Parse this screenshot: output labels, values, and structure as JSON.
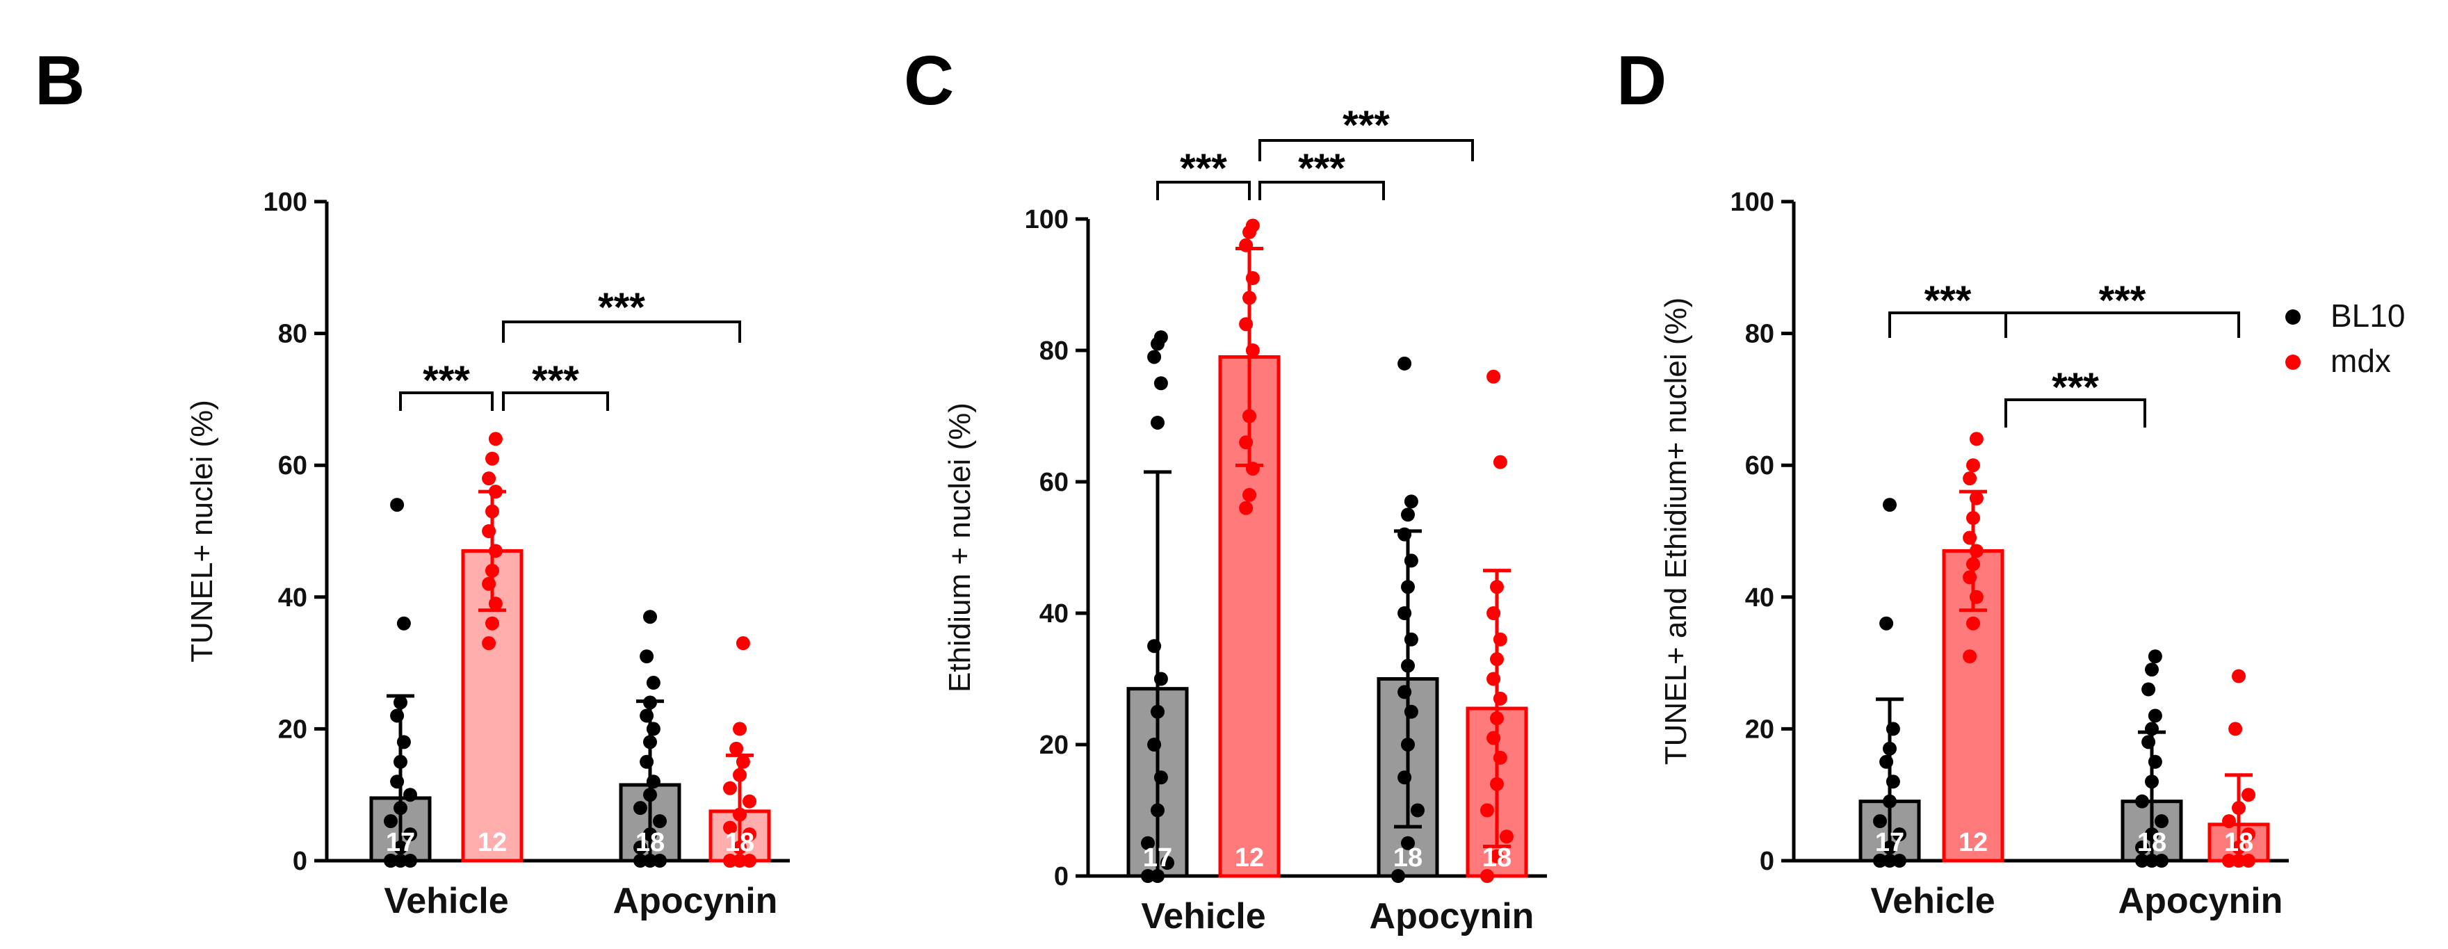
{
  "colors": {
    "bl10_bar": "#9a9a9a",
    "bl10_edge": "#000000",
    "bl10_dot": "#000000",
    "mdx_bar_light": "#ffadad",
    "mdx_bar": "#ff7b7b",
    "mdx_edge": "#ff0000",
    "mdx_dot": "#ff0000",
    "n_text": "#ffffff"
  },
  "legend": {
    "items": [
      {
        "label": "BL10"
      },
      {
        "label": "mdx"
      }
    ]
  },
  "chart_data": [
    {
      "panel": "B",
      "type": "bar",
      "ylabel": "TUNEL+ nuclei (%)",
      "ylim": [
        0,
        100
      ],
      "yticks": [
        "0",
        "20",
        "40",
        "60",
        "80",
        "100"
      ],
      "categories": [
        "Vehicle",
        "Apocynin"
      ],
      "series": [
        {
          "name": "BL10",
          "means": [
            9.5,
            11.5
          ],
          "sd": [
            15.5,
            12.7
          ],
          "n": [
            "17",
            "18"
          ],
          "points": [
            [
              0,
              0,
              0,
              0,
              2,
              4,
              6,
              8,
              10,
              12,
              15,
              18,
              22,
              24,
              36,
              54
            ],
            [
              0,
              0,
              0,
              2,
              4,
              6,
              8,
              10,
              12,
              15,
              18,
              20,
              22,
              24,
              27,
              31,
              37
            ]
          ]
        },
        {
          "name": "mdx",
          "means": [
            47,
            7.5
          ],
          "sd": [
            9,
            8.5
          ],
          "n": [
            "12",
            "18"
          ],
          "points": [
            [
              33,
              36,
              39,
              42,
              44,
              47,
              50,
              53,
              56,
              58,
              61,
              64
            ],
            [
              0,
              0,
              0,
              0,
              2,
              4,
              5,
              7,
              9,
              11,
              13,
              15,
              17,
              20,
              33
            ]
          ]
        }
      ],
      "significance": [
        {
          "label": "***",
          "from": "Vehicle-BL10",
          "to": "Vehicle-mdx"
        },
        {
          "label": "***",
          "from": "Vehicle-mdx",
          "to": "Apocynin-BL10"
        },
        {
          "label": "***",
          "from": "Vehicle-mdx",
          "to": "Apocynin-mdx"
        }
      ]
    },
    {
      "panel": "C",
      "type": "bar",
      "ylabel": "Ethidium + nuclei (%)",
      "ylim": [
        0,
        100
      ],
      "yticks": [
        "0",
        "20",
        "40",
        "60",
        "80",
        "100"
      ],
      "categories": [
        "Vehicle",
        "Apocynin"
      ],
      "series": [
        {
          "name": "BL10",
          "means": [
            28.5,
            30
          ],
          "sd": [
            33,
            22.5
          ],
          "n": [
            "17",
            "18"
          ],
          "points": [
            [
              0,
              0,
              2,
              5,
              10,
              15,
              20,
              25,
              30,
              35,
              69,
              75,
              79,
              81,
              82
            ],
            [
              0,
              5,
              10,
              15,
              20,
              25,
              28,
              32,
              36,
              40,
              44,
              48,
              52,
              55,
              57,
              78
            ]
          ]
        },
        {
          "name": "mdx",
          "means": [
            79,
            25.5
          ],
          "sd": [
            16.5,
            21
          ],
          "n": [
            "12",
            "18"
          ],
          "points": [
            [
              56,
              58,
              62,
              66,
              70,
              80,
              84,
              88,
              91,
              96,
              98,
              99
            ],
            [
              0,
              3,
              6,
              10,
              14,
              18,
              21,
              24,
              27,
              30,
              33,
              36,
              40,
              44,
              63,
              76
            ]
          ]
        }
      ],
      "significance": [
        {
          "label": "***",
          "from": "Vehicle-BL10",
          "to": "Vehicle-mdx"
        },
        {
          "label": "***",
          "from": "Vehicle-mdx",
          "to": "Apocynin-BL10"
        },
        {
          "label": "***",
          "from": "Vehicle-mdx",
          "to": "Apocynin-mdx"
        }
      ]
    },
    {
      "panel": "D",
      "type": "bar",
      "ylabel": "TUNEL+ and Ethidium+ nuclei (%)",
      "ylim": [
        0,
        100
      ],
      "yticks": [
        "0",
        "20",
        "40",
        "60",
        "80",
        "100"
      ],
      "categories": [
        "Vehicle",
        "Apocynin"
      ],
      "series": [
        {
          "name": "BL10",
          "means": [
            9,
            9
          ],
          "sd": [
            15.5,
            10.5
          ],
          "n": [
            "17",
            "18"
          ],
          "points": [
            [
              0,
              0,
              0,
              0,
              2,
              4,
              6,
              9,
              12,
              15,
              17,
              20,
              36,
              54
            ],
            [
              0,
              0,
              0,
              2,
              4,
              6,
              9,
              12,
              15,
              18,
              20,
              22,
              26,
              29,
              31
            ]
          ]
        },
        {
          "name": "mdx",
          "means": [
            47,
            5.5
          ],
          "sd": [
            9,
            7.5
          ],
          "n": [
            "12",
            "18"
          ],
          "points": [
            [
              31,
              36,
              40,
              43,
              45,
              47,
              49,
              52,
              55,
              58,
              60,
              64
            ],
            [
              0,
              0,
              0,
              0,
              2,
              4,
              6,
              8,
              10,
              20,
              28
            ]
          ]
        }
      ],
      "significance": [
        {
          "label": "***",
          "from": "Vehicle-BL10",
          "to": "Vehicle-mdx"
        },
        {
          "label": "***",
          "from": "Vehicle-mdx",
          "to": "Apocynin-BL10"
        },
        {
          "label": "***",
          "from": "Vehicle-mdx",
          "to": "Apocynin-mdx"
        }
      ]
    }
  ]
}
